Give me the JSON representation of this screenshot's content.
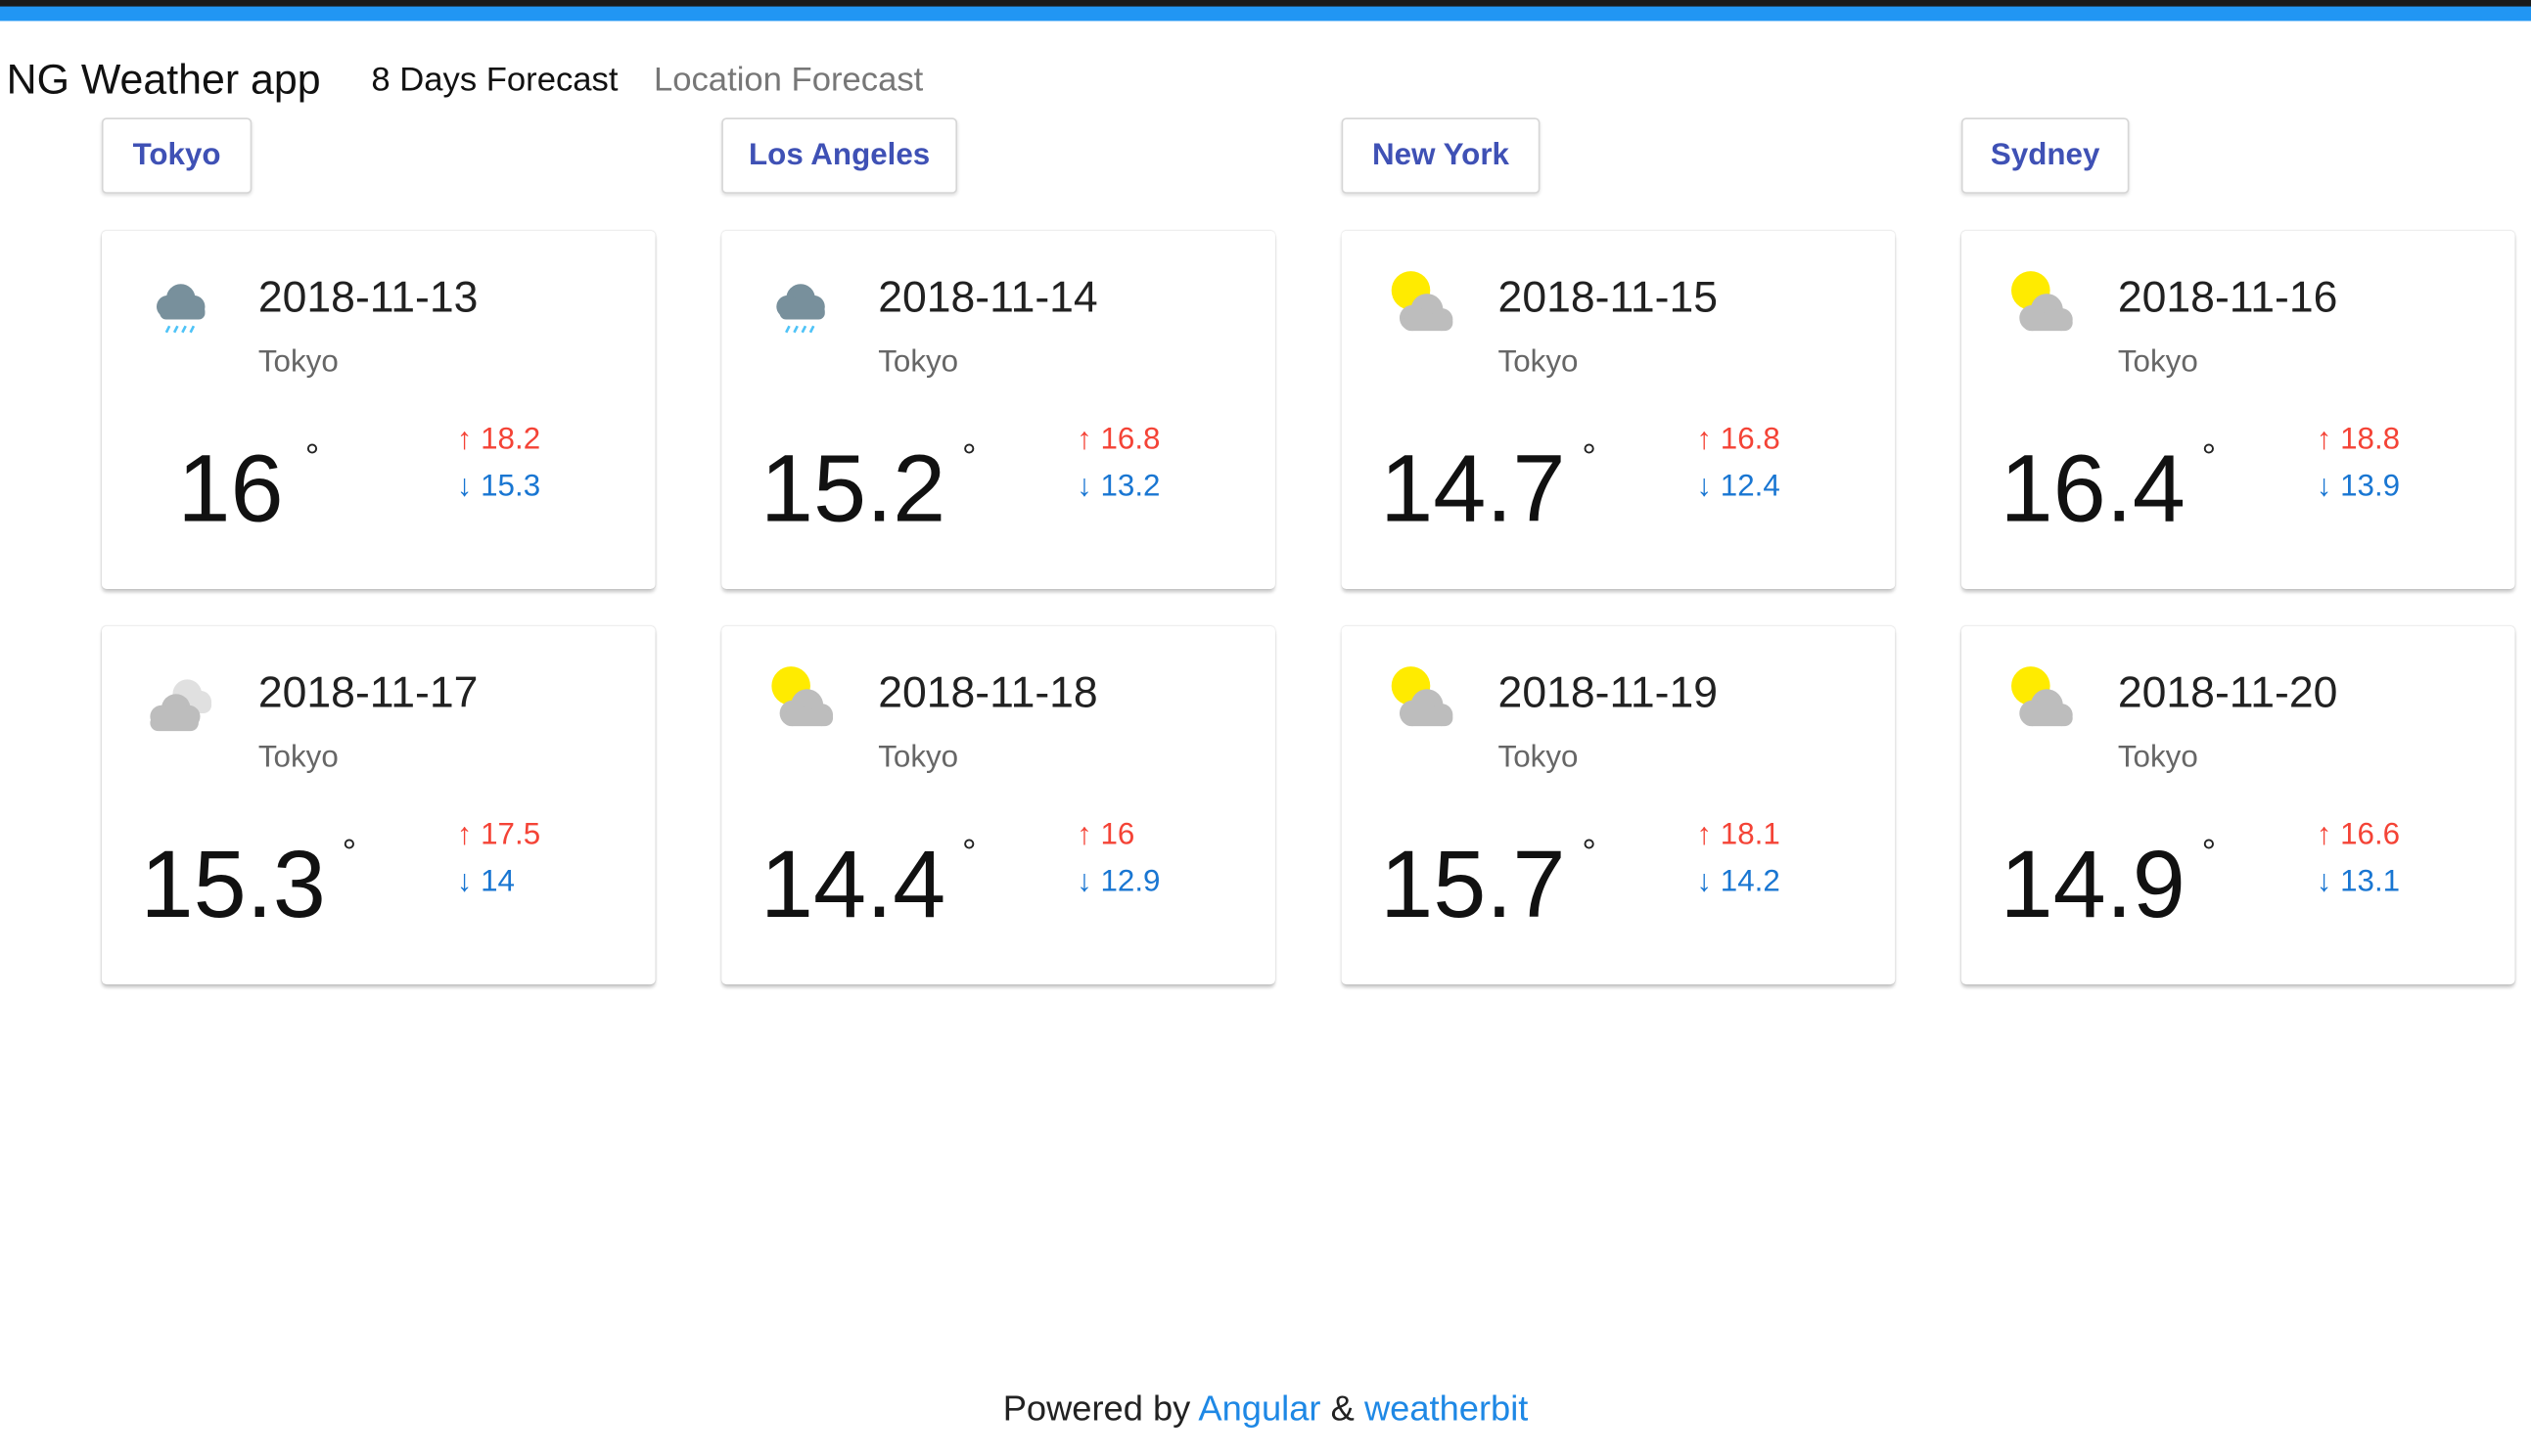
{
  "header": {
    "app_title": "NG Weather app",
    "nav": [
      {
        "label": "8 Days Forecast",
        "active": true
      },
      {
        "label": "Location Forecast",
        "active": false
      }
    ],
    "accent_color": "#2196f3"
  },
  "cities": [
    "Tokyo",
    "Los Angeles",
    "New York",
    "Sydney"
  ],
  "forecast": [
    {
      "date": "2018-11-13",
      "city": "Tokyo",
      "temp": "16",
      "degree": "°",
      "high": "↑ 18.2",
      "low": "↓ 15.3",
      "icon": "rain-cloud-icon"
    },
    {
      "date": "2018-11-14",
      "city": "Tokyo",
      "temp": "15.2",
      "degree": "°",
      "high": "↑ 16.8",
      "low": "↓ 13.2",
      "icon": "rain-cloud-icon"
    },
    {
      "date": "2018-11-15",
      "city": "Tokyo",
      "temp": "14.7",
      "degree": "°",
      "high": "↑ 16.8",
      "low": "↓ 12.4",
      "icon": "partly-cloudy-icon"
    },
    {
      "date": "2018-11-16",
      "city": "Tokyo",
      "temp": "16.4",
      "degree": "°",
      "high": "↑ 18.8",
      "low": "↓ 13.9",
      "icon": "partly-cloudy-icon"
    },
    {
      "date": "2018-11-17",
      "city": "Tokyo",
      "temp": "15.3",
      "degree": "°",
      "high": "↑ 17.5",
      "low": "↓ 14",
      "icon": "cloudy-icon"
    },
    {
      "date": "2018-11-18",
      "city": "Tokyo",
      "temp": "14.4",
      "degree": "°",
      "high": "↑ 16",
      "low": "↓ 12.9",
      "icon": "partly-cloudy-icon"
    },
    {
      "date": "2018-11-19",
      "city": "Tokyo",
      "temp": "15.7",
      "degree": "°",
      "high": "↑ 18.1",
      "low": "↓ 14.2",
      "icon": "partly-cloudy-icon"
    },
    {
      "date": "2018-11-20",
      "city": "Tokyo",
      "temp": "14.9",
      "degree": "°",
      "high": "↑ 16.6",
      "low": "↓ 13.1",
      "icon": "partly-cloudy-icon"
    }
  ],
  "footer": {
    "prefix": "Powered by",
    "link1": "Angular",
    "separator": "&",
    "link2": "weatherbit"
  }
}
